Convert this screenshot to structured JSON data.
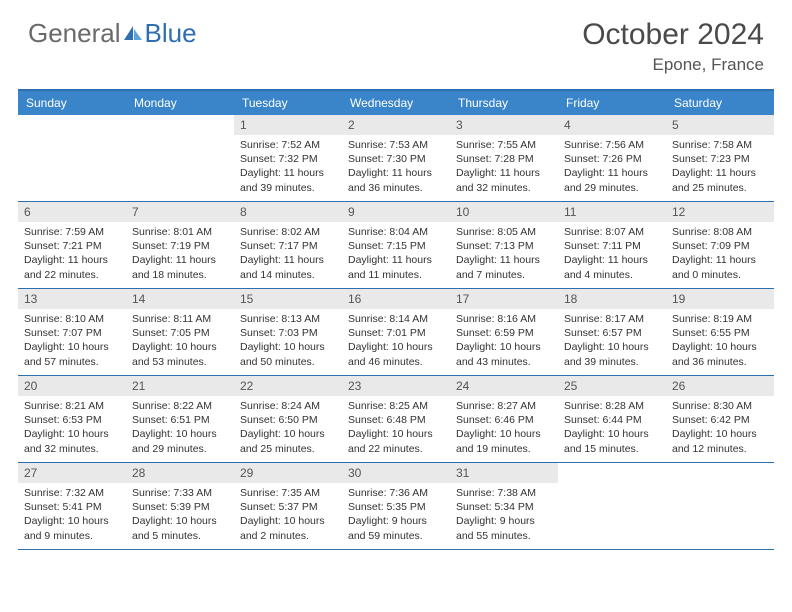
{
  "brand": {
    "part1": "General",
    "part2": "Blue"
  },
  "title": "October 2024",
  "location": "Epone, France",
  "colors": {
    "header_bg": "#3a85c9",
    "border": "#2f6fb0",
    "daynum_bg": "#e9e9e9",
    "text": "#333333",
    "title_text": "#4a4a4a"
  },
  "layout": {
    "columns": 7,
    "cell_min_height": 86,
    "font_family": "Arial",
    "title_fontsize": 30,
    "location_fontsize": 17,
    "dayhead_fontsize": 12,
    "daynum_fontsize": 12,
    "body_fontsize": 10.5
  },
  "day_headers": [
    "Sunday",
    "Monday",
    "Tuesday",
    "Wednesday",
    "Thursday",
    "Friday",
    "Saturday"
  ],
  "weeks": [
    [
      null,
      null,
      {
        "n": "1",
        "sr": "Sunrise: 7:52 AM",
        "ss": "Sunset: 7:32 PM",
        "d1": "Daylight: 11 hours",
        "d2": "and 39 minutes."
      },
      {
        "n": "2",
        "sr": "Sunrise: 7:53 AM",
        "ss": "Sunset: 7:30 PM",
        "d1": "Daylight: 11 hours",
        "d2": "and 36 minutes."
      },
      {
        "n": "3",
        "sr": "Sunrise: 7:55 AM",
        "ss": "Sunset: 7:28 PM",
        "d1": "Daylight: 11 hours",
        "d2": "and 32 minutes."
      },
      {
        "n": "4",
        "sr": "Sunrise: 7:56 AM",
        "ss": "Sunset: 7:26 PM",
        "d1": "Daylight: 11 hours",
        "d2": "and 29 minutes."
      },
      {
        "n": "5",
        "sr": "Sunrise: 7:58 AM",
        "ss": "Sunset: 7:23 PM",
        "d1": "Daylight: 11 hours",
        "d2": "and 25 minutes."
      }
    ],
    [
      {
        "n": "6",
        "sr": "Sunrise: 7:59 AM",
        "ss": "Sunset: 7:21 PM",
        "d1": "Daylight: 11 hours",
        "d2": "and 22 minutes."
      },
      {
        "n": "7",
        "sr": "Sunrise: 8:01 AM",
        "ss": "Sunset: 7:19 PM",
        "d1": "Daylight: 11 hours",
        "d2": "and 18 minutes."
      },
      {
        "n": "8",
        "sr": "Sunrise: 8:02 AM",
        "ss": "Sunset: 7:17 PM",
        "d1": "Daylight: 11 hours",
        "d2": "and 14 minutes."
      },
      {
        "n": "9",
        "sr": "Sunrise: 8:04 AM",
        "ss": "Sunset: 7:15 PM",
        "d1": "Daylight: 11 hours",
        "d2": "and 11 minutes."
      },
      {
        "n": "10",
        "sr": "Sunrise: 8:05 AM",
        "ss": "Sunset: 7:13 PM",
        "d1": "Daylight: 11 hours",
        "d2": "and 7 minutes."
      },
      {
        "n": "11",
        "sr": "Sunrise: 8:07 AM",
        "ss": "Sunset: 7:11 PM",
        "d1": "Daylight: 11 hours",
        "d2": "and 4 minutes."
      },
      {
        "n": "12",
        "sr": "Sunrise: 8:08 AM",
        "ss": "Sunset: 7:09 PM",
        "d1": "Daylight: 11 hours",
        "d2": "and 0 minutes."
      }
    ],
    [
      {
        "n": "13",
        "sr": "Sunrise: 8:10 AM",
        "ss": "Sunset: 7:07 PM",
        "d1": "Daylight: 10 hours",
        "d2": "and 57 minutes."
      },
      {
        "n": "14",
        "sr": "Sunrise: 8:11 AM",
        "ss": "Sunset: 7:05 PM",
        "d1": "Daylight: 10 hours",
        "d2": "and 53 minutes."
      },
      {
        "n": "15",
        "sr": "Sunrise: 8:13 AM",
        "ss": "Sunset: 7:03 PM",
        "d1": "Daylight: 10 hours",
        "d2": "and 50 minutes."
      },
      {
        "n": "16",
        "sr": "Sunrise: 8:14 AM",
        "ss": "Sunset: 7:01 PM",
        "d1": "Daylight: 10 hours",
        "d2": "and 46 minutes."
      },
      {
        "n": "17",
        "sr": "Sunrise: 8:16 AM",
        "ss": "Sunset: 6:59 PM",
        "d1": "Daylight: 10 hours",
        "d2": "and 43 minutes."
      },
      {
        "n": "18",
        "sr": "Sunrise: 8:17 AM",
        "ss": "Sunset: 6:57 PM",
        "d1": "Daylight: 10 hours",
        "d2": "and 39 minutes."
      },
      {
        "n": "19",
        "sr": "Sunrise: 8:19 AM",
        "ss": "Sunset: 6:55 PM",
        "d1": "Daylight: 10 hours",
        "d2": "and 36 minutes."
      }
    ],
    [
      {
        "n": "20",
        "sr": "Sunrise: 8:21 AM",
        "ss": "Sunset: 6:53 PM",
        "d1": "Daylight: 10 hours",
        "d2": "and 32 minutes."
      },
      {
        "n": "21",
        "sr": "Sunrise: 8:22 AM",
        "ss": "Sunset: 6:51 PM",
        "d1": "Daylight: 10 hours",
        "d2": "and 29 minutes."
      },
      {
        "n": "22",
        "sr": "Sunrise: 8:24 AM",
        "ss": "Sunset: 6:50 PM",
        "d1": "Daylight: 10 hours",
        "d2": "and 25 minutes."
      },
      {
        "n": "23",
        "sr": "Sunrise: 8:25 AM",
        "ss": "Sunset: 6:48 PM",
        "d1": "Daylight: 10 hours",
        "d2": "and 22 minutes."
      },
      {
        "n": "24",
        "sr": "Sunrise: 8:27 AM",
        "ss": "Sunset: 6:46 PM",
        "d1": "Daylight: 10 hours",
        "d2": "and 19 minutes."
      },
      {
        "n": "25",
        "sr": "Sunrise: 8:28 AM",
        "ss": "Sunset: 6:44 PM",
        "d1": "Daylight: 10 hours",
        "d2": "and 15 minutes."
      },
      {
        "n": "26",
        "sr": "Sunrise: 8:30 AM",
        "ss": "Sunset: 6:42 PM",
        "d1": "Daylight: 10 hours",
        "d2": "and 12 minutes."
      }
    ],
    [
      {
        "n": "27",
        "sr": "Sunrise: 7:32 AM",
        "ss": "Sunset: 5:41 PM",
        "d1": "Daylight: 10 hours",
        "d2": "and 9 minutes."
      },
      {
        "n": "28",
        "sr": "Sunrise: 7:33 AM",
        "ss": "Sunset: 5:39 PM",
        "d1": "Daylight: 10 hours",
        "d2": "and 5 minutes."
      },
      {
        "n": "29",
        "sr": "Sunrise: 7:35 AM",
        "ss": "Sunset: 5:37 PM",
        "d1": "Daylight: 10 hours",
        "d2": "and 2 minutes."
      },
      {
        "n": "30",
        "sr": "Sunrise: 7:36 AM",
        "ss": "Sunset: 5:35 PM",
        "d1": "Daylight: 9 hours",
        "d2": "and 59 minutes."
      },
      {
        "n": "31",
        "sr": "Sunrise: 7:38 AM",
        "ss": "Sunset: 5:34 PM",
        "d1": "Daylight: 9 hours",
        "d2": "and 55 minutes."
      },
      null,
      null
    ]
  ]
}
